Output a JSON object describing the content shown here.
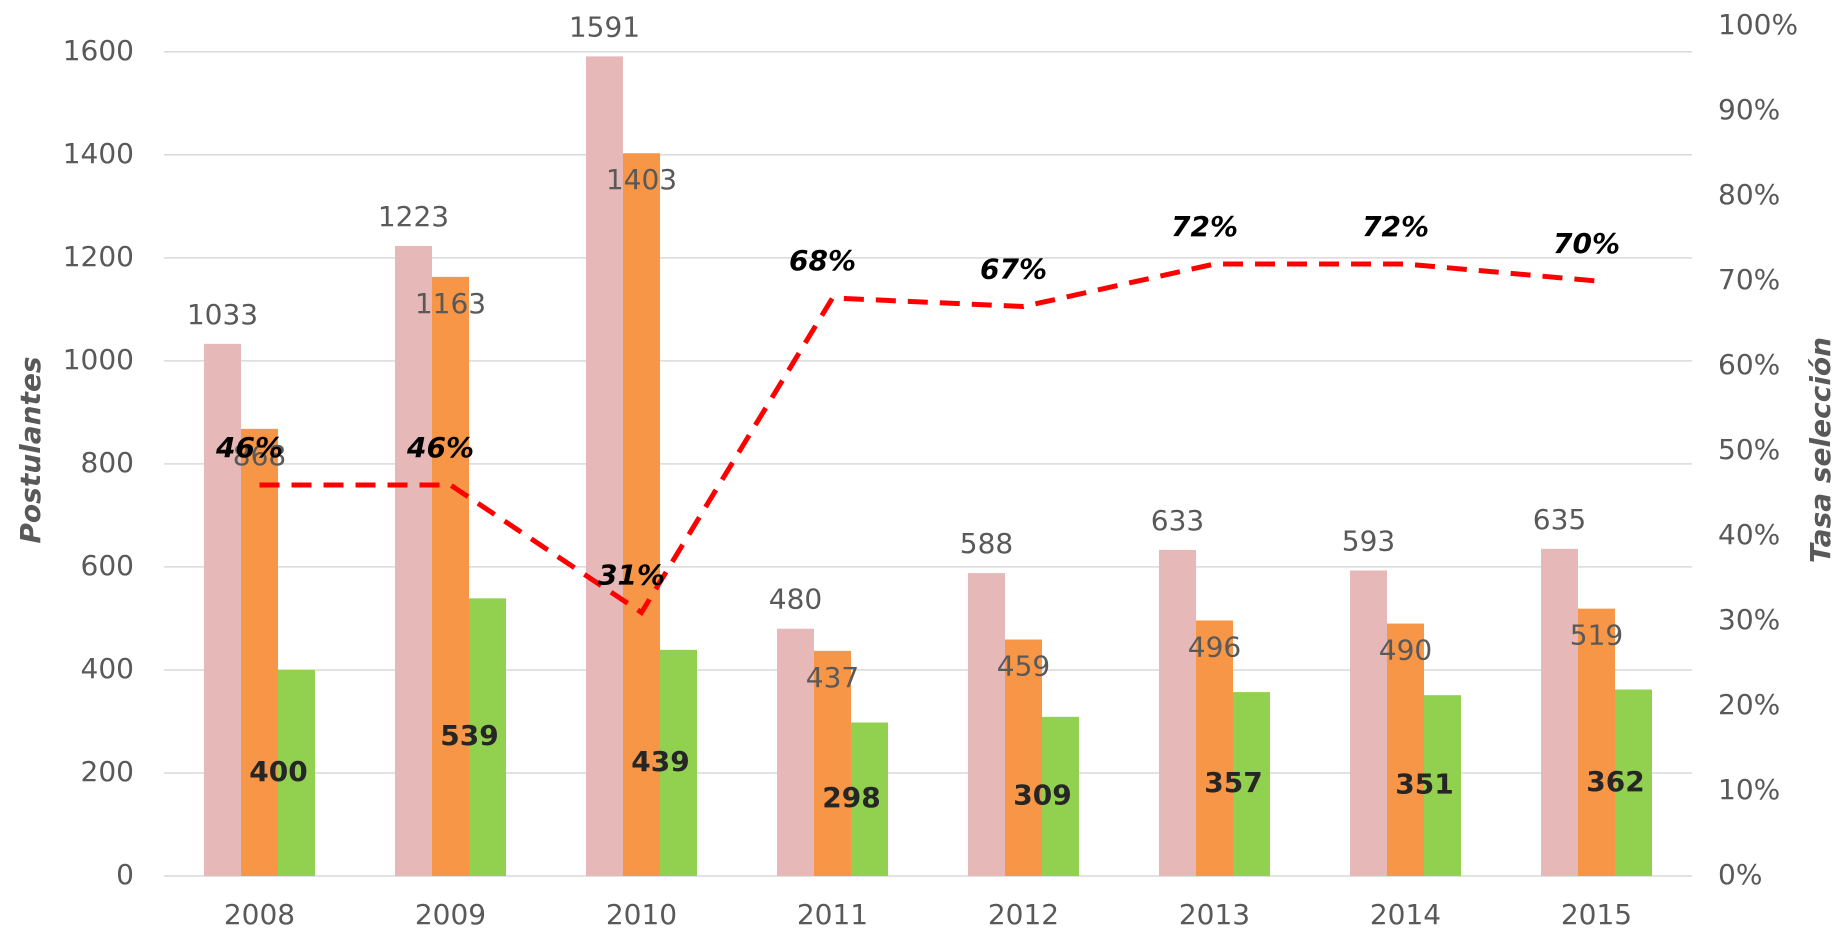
{
  "chart_data": {
    "type": "bar",
    "y_label": "Postulantes",
    "y2_label": "Tasa selección",
    "categories": [
      "2008",
      "2009",
      "2010",
      "2011",
      "2012",
      "2013",
      "2014",
      "2015"
    ],
    "series": [
      {
        "color": "#e6b8b7",
        "values": [
          1033,
          1223,
          1591,
          480,
          588,
          633,
          593,
          635
        ]
      },
      {
        "color": "#f79646",
        "values": [
          868,
          1163,
          1403,
          437,
          459,
          496,
          490,
          519
        ]
      },
      {
        "color": "#92d050",
        "values": [
          400,
          539,
          439,
          298,
          309,
          357,
          351,
          362
        ]
      },
      {
        "type": "line",
        "axis": "y2",
        "color": "#ff0000",
        "values": [
          46,
          46,
          31,
          68,
          67,
          72,
          72,
          70
        ],
        "value_labels": [
          "46%",
          "46%",
          "31%",
          "68%",
          "67%",
          "72%",
          "72%",
          "70%"
        ]
      }
    ],
    "ylim": [
      0,
      1650
    ],
    "yticks": [
      0,
      200,
      400,
      600,
      800,
      1000,
      1200,
      1400,
      1600
    ],
    "y2lim": [
      0,
      100
    ],
    "y2ticks": [
      {
        "value": 0,
        "label": "0%"
      },
      {
        "value": 10,
        "label": "10%"
      },
      {
        "value": 20,
        "label": "20%"
      },
      {
        "value": 30,
        "label": "30%"
      },
      {
        "value": 40,
        "label": "40%"
      },
      {
        "value": 50,
        "label": "50%"
      },
      {
        "value": 60,
        "label": "60%"
      },
      {
        "value": 70,
        "label": "70%"
      },
      {
        "value": 80,
        "label": "80%"
      },
      {
        "value": 90,
        "label": "90%"
      },
      {
        "value": 100,
        "label": "100%"
      }
    ],
    "grid": true
  }
}
